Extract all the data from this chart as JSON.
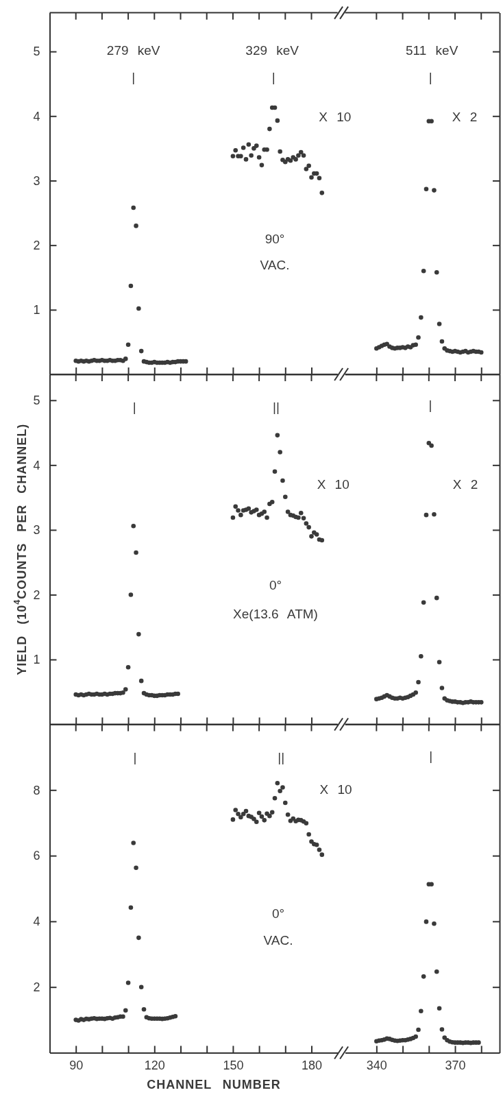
{
  "chart_data": [
    {
      "type": "scatter",
      "marker": "circle",
      "xlim": [
        80,
        190
      ],
      "ylim": [
        0,
        5.6
      ],
      "tick_labels": "y",
      "xticks": [
        90,
        100,
        110,
        120,
        130,
        140,
        150,
        160,
        170,
        180
      ],
      "yticks": [
        1,
        2,
        3,
        4,
        5
      ],
      "annotations": [
        "279 keV",
        "|",
        "329 keV",
        "|",
        "X 10",
        "90°",
        "VAC."
      ],
      "series": [
        {
          "color": "#3a3a3a",
          "x": [
            90,
            91,
            92,
            93,
            94,
            95,
            96,
            97,
            98,
            99,
            100,
            101,
            102,
            103,
            104,
            105,
            106,
            107,
            108,
            109,
            110,
            111,
            112,
            113,
            114,
            115,
            116,
            117,
            118,
            119,
            120,
            121,
            122,
            123,
            124,
            125,
            126,
            127,
            128,
            129,
            130,
            131,
            132,
            150,
            151,
            152,
            153,
            154,
            155,
            156,
            157,
            158,
            159,
            160,
            161,
            162,
            163,
            164,
            165,
            166,
            167,
            168,
            169,
            170,
            171,
            172,
            173,
            174,
            175,
            176,
            177,
            178,
            179,
            180,
            181,
            182,
            183,
            184
          ],
          "values": [
            0.21,
            0.2,
            0.21,
            0.2,
            0.21,
            0.2,
            0.21,
            0.22,
            0.21,
            0.21,
            0.22,
            0.21,
            0.21,
            0.22,
            0.21,
            0.21,
            0.22,
            0.22,
            0.21,
            0.24,
            0.46,
            1.37,
            2.58,
            2.3,
            1.02,
            0.36,
            0.2,
            0.19,
            0.18,
            0.18,
            0.19,
            0.18,
            0.18,
            0.18,
            0.18,
            0.19,
            0.18,
            0.19,
            0.19,
            0.2,
            0.2,
            0.2,
            0.2,
            3.38,
            3.47,
            3.38,
            3.38,
            3.51,
            3.33,
            3.56,
            3.39,
            3.5,
            3.54,
            3.36,
            3.24,
            3.48,
            3.48,
            3.8,
            4.13,
            4.13,
            3.93,
            3.45,
            3.32,
            3.29,
            3.33,
            3.31,
            3.36,
            3.33,
            3.39,
            3.44,
            3.39,
            3.18,
            3.23,
            3.05,
            3.11,
            3.11,
            3.04,
            2.81
          ]
        }
      ]
    },
    {
      "type": "scatter",
      "marker": "circle",
      "xlim": [
        328,
        387
      ],
      "ylim": [
        0,
        5.6
      ],
      "tick_labels": false,
      "xticks": [
        340,
        350,
        360,
        370,
        380
      ],
      "yticks": [
        1,
        2,
        3,
        4,
        5
      ],
      "annotations": [
        "511 keV",
        "|",
        "X 2"
      ],
      "series": [
        {
          "color": "#3a3a3a",
          "x": [
            340,
            341,
            342,
            343,
            344,
            345,
            346,
            347,
            348,
            349,
            350,
            351,
            352,
            353,
            354,
            355,
            356,
            357,
            358,
            359,
            360,
            361,
            362,
            363,
            364,
            365,
            366,
            367,
            368,
            369,
            370,
            371,
            372,
            373,
            374,
            375,
            376,
            377,
            378,
            379,
            380
          ],
          "values": [
            0.4,
            0.42,
            0.44,
            0.46,
            0.47,
            0.43,
            0.41,
            0.4,
            0.41,
            0.41,
            0.42,
            0.41,
            0.43,
            0.42,
            0.45,
            0.46,
            0.57,
            0.88,
            1.6,
            2.87,
            3.92,
            3.92,
            2.85,
            1.58,
            0.78,
            0.51,
            0.4,
            0.37,
            0.36,
            0.35,
            0.36,
            0.35,
            0.34,
            0.35,
            0.36,
            0.34,
            0.35,
            0.36,
            0.35,
            0.35,
            0.34
          ]
        }
      ]
    },
    {
      "type": "scatter",
      "marker": "circle",
      "xlim": [
        80,
        190
      ],
      "ylim": [
        0,
        5.4
      ],
      "tick_labels": "y",
      "ylabel": "YIELD (10$^{4}$COUNTS PER CHANNEL)",
      "xticks": [
        90,
        100,
        110,
        120,
        130,
        140,
        150,
        160,
        170,
        180
      ],
      "yticks": [
        1,
        2,
        3,
        4,
        5
      ],
      "annotations": [
        "|",
        "||",
        "X 10",
        "0°",
        "Xe(13.6 ATM)"
      ],
      "series": [
        {
          "color": "#3a3a3a",
          "x": [
            90,
            91,
            92,
            93,
            94,
            95,
            96,
            97,
            98,
            99,
            100,
            101,
            102,
            103,
            104,
            105,
            106,
            107,
            108,
            109,
            110,
            111,
            112,
            113,
            114,
            115,
            116,
            117,
            118,
            119,
            120,
            121,
            122,
            123,
            124,
            125,
            126,
            127,
            128,
            129,
            150,
            151,
            152,
            153,
            154,
            155,
            156,
            157,
            158,
            159,
            160,
            161,
            162,
            163,
            164,
            165,
            166,
            167,
            168,
            169,
            170,
            171,
            172,
            173,
            174,
            175,
            176,
            177,
            178,
            179,
            180,
            181,
            182,
            183,
            184
          ],
          "values": [
            0.46,
            0.45,
            0.46,
            0.45,
            0.46,
            0.47,
            0.46,
            0.46,
            0.47,
            0.46,
            0.46,
            0.47,
            0.46,
            0.47,
            0.47,
            0.48,
            0.48,
            0.48,
            0.49,
            0.54,
            0.88,
            2.0,
            3.06,
            2.65,
            1.39,
            0.67,
            0.48,
            0.46,
            0.45,
            0.45,
            0.44,
            0.44,
            0.45,
            0.45,
            0.45,
            0.46,
            0.46,
            0.46,
            0.47,
            0.47,
            3.19,
            3.36,
            3.3,
            3.23,
            3.3,
            3.31,
            3.33,
            3.27,
            3.29,
            3.31,
            3.23,
            3.25,
            3.28,
            3.19,
            3.4,
            3.43,
            3.9,
            4.46,
            4.2,
            3.76,
            3.51,
            3.28,
            3.23,
            3.22,
            3.2,
            3.19,
            3.26,
            3.18,
            3.1,
            3.04,
            2.9,
            2.96,
            2.93,
            2.85,
            2.84
          ]
        }
      ]
    },
    {
      "type": "scatter",
      "marker": "circle",
      "xlim": [
        328,
        387
      ],
      "ylim": [
        0,
        5.4
      ],
      "tick_labels": false,
      "xticks": [
        340,
        350,
        360,
        370,
        380
      ],
      "yticks": [
        1,
        2,
        3,
        4,
        5
      ],
      "annotations": [
        "|",
        "X 2"
      ],
      "series": [
        {
          "color": "#3a3a3a",
          "x": [
            340,
            341,
            342,
            343,
            344,
            345,
            346,
            347,
            348,
            349,
            350,
            351,
            352,
            353,
            354,
            355,
            356,
            357,
            358,
            359,
            360,
            361,
            362,
            363,
            364,
            365,
            366,
            367,
            368,
            369,
            370,
            371,
            372,
            373,
            374,
            375,
            376,
            377,
            378,
            379,
            380
          ],
          "values": [
            0.39,
            0.4,
            0.41,
            0.43,
            0.45,
            0.43,
            0.41,
            0.4,
            0.4,
            0.41,
            0.4,
            0.41,
            0.42,
            0.44,
            0.46,
            0.49,
            0.65,
            1.05,
            1.88,
            3.23,
            4.34,
            4.3,
            3.24,
            1.95,
            0.96,
            0.56,
            0.4,
            0.37,
            0.36,
            0.35,
            0.35,
            0.34,
            0.34,
            0.33,
            0.34,
            0.34,
            0.35,
            0.34,
            0.34,
            0.34,
            0.34
          ]
        }
      ]
    },
    {
      "type": "scatter",
      "marker": "circle",
      "xlim": [
        80,
        190
      ],
      "ylim": [
        0,
        10
      ],
      "xlabel": "CHANNEL NUMBER",
      "xticks": [
        {
          "value": 90,
          "label": "90"
        },
        {
          "value": 100,
          "label": null
        },
        {
          "value": 110,
          "label": null
        },
        {
          "value": 120,
          "label": "120"
        },
        {
          "value": 130,
          "label": null
        },
        {
          "value": 140,
          "label": null
        },
        {
          "value": 150,
          "label": "150"
        },
        {
          "value": 160,
          "label": null
        },
        {
          "value": 170,
          "label": null
        },
        {
          "value": 180,
          "label": "180"
        }
      ],
      "yticks": [
        2,
        4,
        6,
        8
      ],
      "annotations": [
        "|",
        "||",
        "X 10",
        "0°",
        "VAC."
      ],
      "series": [
        {
          "color": "#3a3a3a",
          "x": [
            90,
            91,
            92,
            93,
            94,
            95,
            96,
            97,
            98,
            99,
            100,
            101,
            102,
            103,
            104,
            105,
            106,
            107,
            108,
            109,
            110,
            111,
            112,
            113,
            114,
            115,
            116,
            117,
            118,
            119,
            120,
            121,
            122,
            123,
            124,
            125,
            126,
            127,
            128,
            150,
            151,
            152,
            153,
            154,
            155,
            156,
            157,
            158,
            159,
            160,
            161,
            162,
            163,
            164,
            165,
            166,
            167,
            168,
            169,
            170,
            171,
            172,
            173,
            174,
            175,
            176,
            177,
            178,
            179,
            180,
            181,
            182,
            183,
            184
          ],
          "values": [
            1.0,
            0.98,
            1.02,
            1.0,
            1.03,
            1.02,
            1.04,
            1.05,
            1.03,
            1.04,
            1.04,
            1.03,
            1.05,
            1.06,
            1.04,
            1.07,
            1.08,
            1.1,
            1.1,
            1.29,
            2.13,
            4.42,
            6.39,
            5.63,
            3.5,
            2.0,
            1.32,
            1.08,
            1.05,
            1.04,
            1.04,
            1.04,
            1.04,
            1.03,
            1.04,
            1.05,
            1.07,
            1.09,
            1.11,
            7.1,
            7.39,
            7.27,
            7.17,
            7.27,
            7.36,
            7.21,
            7.18,
            7.12,
            7.03,
            7.3,
            7.19,
            7.08,
            7.28,
            7.21,
            7.32,
            7.75,
            8.21,
            7.97,
            8.08,
            7.61,
            7.25,
            7.06,
            7.13,
            7.05,
            7.09,
            7.08,
            7.04,
            6.99,
            6.65,
            6.43,
            6.35,
            6.33,
            6.18,
            6.03
          ]
        }
      ]
    },
    {
      "type": "scatter",
      "marker": "circle",
      "xlim": [
        328,
        387
      ],
      "ylim": [
        0,
        10
      ],
      "tick_labels": "x",
      "xticks": [
        {
          "value": 340,
          "label": "340"
        },
        {
          "value": 350,
          "label": null
        },
        {
          "value": 360,
          "label": null
        },
        {
          "value": 370,
          "label": "370"
        },
        {
          "value": 380,
          "label": null
        }
      ],
      "yticks": [
        2,
        4,
        6,
        8
      ],
      "annotations": [
        "|"
      ],
      "series": [
        {
          "color": "#3a3a3a",
          "x": [
            340,
            341,
            342,
            343,
            344,
            345,
            346,
            347,
            348,
            349,
            350,
            351,
            352,
            353,
            354,
            355,
            356,
            357,
            358,
            359,
            360,
            361,
            362,
            363,
            364,
            365,
            366,
            367,
            368,
            369,
            370,
            371,
            372,
            373,
            374,
            375,
            376,
            377,
            378,
            379
          ],
          "values": [
            0.35,
            0.37,
            0.38,
            0.4,
            0.43,
            0.42,
            0.39,
            0.37,
            0.36,
            0.37,
            0.38,
            0.38,
            0.4,
            0.42,
            0.45,
            0.49,
            0.7,
            1.27,
            2.32,
            3.99,
            5.13,
            5.13,
            3.93,
            2.47,
            1.35,
            0.71,
            0.46,
            0.38,
            0.34,
            0.32,
            0.31,
            0.31,
            0.31,
            0.3,
            0.31,
            0.31,
            0.3,
            0.31,
            0.31,
            0.31
          ]
        }
      ]
    }
  ]
}
